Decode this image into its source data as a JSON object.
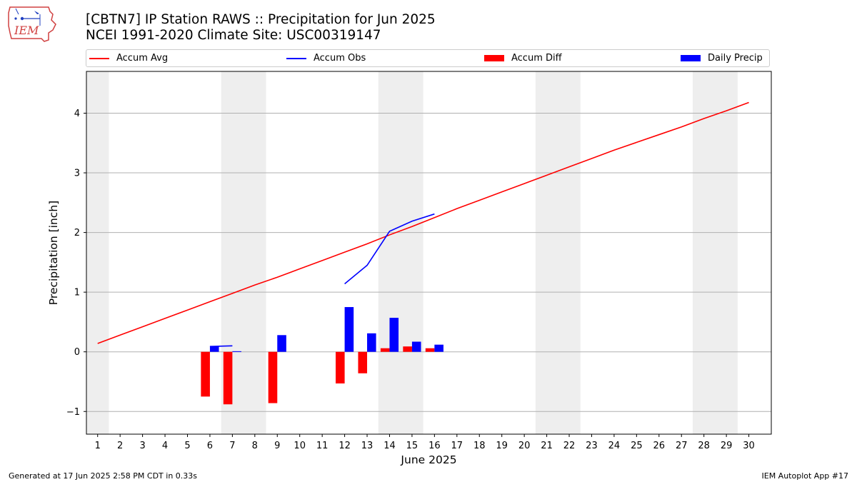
{
  "header": {
    "logo_text": "IEM",
    "title_line1": "[CBTN7] IP Station RAWS :: Precipitation for Jun 2025",
    "title_line2": "NCEI 1991-2020 Climate Site: USC00319147"
  },
  "footer": {
    "generated": "Generated at 17 Jun 2025 2:58 PM CDT in 0.33s",
    "app": "IEM Autoplot App #17"
  },
  "colors": {
    "avg": "#ff0000",
    "obs": "#0000ff",
    "diff": "#ff0000",
    "daily": "#0000ff",
    "weekend_band": "#eeeeee",
    "grid": "#b0b0b0"
  },
  "chart_data": {
    "type": "bar",
    "xlabel": "June 2025",
    "ylabel": "Precipitation [inch]",
    "xlim": [
      0.5,
      31
    ],
    "ylim": [
      -1.38,
      4.7
    ],
    "yticks": [
      -1,
      0,
      1,
      2,
      3,
      4
    ],
    "ytick_labels": [
      "−1",
      "0",
      "1",
      "2",
      "3",
      "4"
    ],
    "xticks": [
      1,
      2,
      3,
      4,
      5,
      6,
      7,
      8,
      9,
      10,
      11,
      12,
      13,
      14,
      15,
      16,
      17,
      18,
      19,
      20,
      21,
      22,
      23,
      24,
      25,
      26,
      27,
      28,
      29,
      30
    ],
    "grid_y": true,
    "legend_position": "top",
    "weekend_bands": [
      [
        0.5,
        1.5
      ],
      [
        6.5,
        8.5
      ],
      [
        13.5,
        15.5
      ],
      [
        20.5,
        22.5
      ],
      [
        27.5,
        29.5
      ]
    ],
    "series": [
      {
        "name": "Accum Avg",
        "kind": "line",
        "x": [
          1,
          2,
          3,
          4,
          5,
          6,
          7,
          8,
          9,
          10,
          11,
          12,
          13,
          14,
          15,
          16,
          17,
          18,
          19,
          20,
          21,
          22,
          23,
          24,
          25,
          26,
          27,
          28,
          29,
          30
        ],
        "values": [
          0.14,
          0.28,
          0.42,
          0.56,
          0.7,
          0.84,
          0.98,
          1.12,
          1.25,
          1.39,
          1.53,
          1.67,
          1.81,
          1.96,
          2.1,
          2.25,
          2.4,
          2.54,
          2.68,
          2.82,
          2.96,
          3.1,
          3.24,
          3.38,
          3.51,
          3.64,
          3.77,
          3.91,
          4.04,
          4.18
        ]
      },
      {
        "name": "Accum Obs",
        "kind": "line",
        "segments": [
          {
            "x": [
              6,
              7
            ],
            "values": [
              0.09,
              0.1
            ]
          },
          {
            "x": [
              12,
              13,
              14,
              15,
              16
            ],
            "values": [
              1.14,
              1.45,
              2.02,
              2.19,
              2.31
            ]
          }
        ]
      },
      {
        "name": "Accum Diff",
        "kind": "bar",
        "x": [
          6,
          7,
          9,
          12,
          13,
          14,
          15,
          16
        ],
        "values": [
          -0.75,
          -0.88,
          -0.86,
          -0.53,
          -0.36,
          0.06,
          0.09,
          0.06
        ]
      },
      {
        "name": "Daily Precip",
        "kind": "bar",
        "x": [
          6,
          7,
          9,
          12,
          13,
          14,
          15,
          16
        ],
        "values": [
          0.09,
          0.01,
          0.28,
          0.75,
          0.31,
          0.57,
          0.17,
          0.12
        ]
      }
    ]
  }
}
